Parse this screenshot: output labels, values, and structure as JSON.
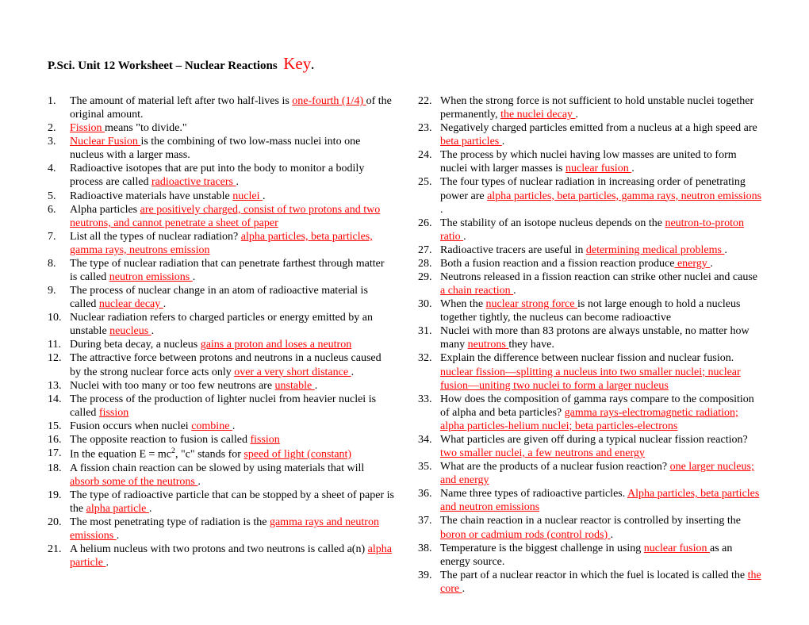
{
  "title": {
    "main": "P.Sci. Unit 12 Worksheet – Nuclear Reactions",
    "key": "Key",
    "period": "."
  },
  "colors": {
    "answer": "#ff0000",
    "text": "#000000",
    "background": "#ffffff"
  },
  "typography": {
    "body_fontsize_pt": 11,
    "title_fontsize_pt": 11,
    "key_fontsize_pt": 16,
    "font_family": "Times New Roman"
  },
  "questions": [
    {
      "parts": [
        {
          "t": "The amount of material left after two half-lives is "
        },
        {
          "a": "  one-fourth (1/4)  "
        },
        {
          "t": " of the original amount."
        }
      ]
    },
    {
      "parts": [
        {
          "a": "  Fission  "
        },
        {
          "t": " means \"to divide.\""
        }
      ]
    },
    {
      "parts": [
        {
          "a": "  Nuclear Fusion  "
        },
        {
          "t": " is the combining of two low-mass nuclei into one nucleus with a larger mass."
        }
      ]
    },
    {
      "parts": [
        {
          "t": "Radioactive isotopes that are put into the body to monitor a bodily process are called "
        },
        {
          "a": "  radioactive tracers  "
        },
        {
          "t": "."
        }
      ]
    },
    {
      "parts": [
        {
          "t": "Radioactive materials have unstable "
        },
        {
          "a": "  nuclei  "
        },
        {
          "t": "."
        }
      ]
    },
    {
      "parts": [
        {
          "t": "Alpha particles "
        },
        {
          "a": " are positively charged, consist of two protons and two neutrons, and cannot penetrate a sheet of paper"
        }
      ]
    },
    {
      "parts": [
        {
          "t": "List all the types of nuclear radiation? "
        },
        {
          "a": " alpha particles, beta particles, gamma rays,  neutrons emission"
        }
      ]
    },
    {
      "parts": [
        {
          "t": "The type of nuclear radiation that can penetrate farthest through matter is called "
        },
        {
          "a": "  neutron emissions  "
        },
        {
          "t": "."
        }
      ]
    },
    {
      "parts": [
        {
          "t": "The process of nuclear change in an atom of radioactive material is called "
        },
        {
          "a": "  nuclear decay  "
        },
        {
          "t": "."
        }
      ]
    },
    {
      "parts": [
        {
          "t": "Nuclear radiation refers to charged particles or energy emitted by an unstable "
        },
        {
          "a": "  neucleus   "
        },
        {
          "t": "."
        }
      ]
    },
    {
      "parts": [
        {
          "t": "During beta decay, a nucleus "
        },
        {
          "a": "   gains a proton and loses a neutron   "
        }
      ]
    },
    {
      "parts": [
        {
          "t": "The attractive force between protons and neutrons in a nucleus caused by the strong nuclear force acts only "
        },
        {
          "a": "   over a very short distance   "
        },
        {
          "t": "."
        }
      ]
    },
    {
      "parts": [
        {
          "t": "Nuclei with too many or too few neutrons are "
        },
        {
          "a": "   unstable   "
        },
        {
          "t": "."
        }
      ]
    },
    {
      "parts": [
        {
          "t": "The process of the production of lighter nuclei from heavier nuclei is called "
        },
        {
          "a": "   fission   "
        }
      ]
    },
    {
      "parts": [
        {
          "t": "Fusion occurs when nuclei "
        },
        {
          "a": "  combine  "
        },
        {
          "t": "."
        }
      ]
    },
    {
      "parts": [
        {
          "t": "The opposite reaction to fusion is called "
        },
        {
          "a": "  fission   "
        }
      ]
    },
    {
      "parts": [
        {
          "t": "In the equation E = mc"
        },
        {
          "sup": "2"
        },
        {
          "t": ", \"c\" stands for "
        },
        {
          "a": "   speed of light (constant)   "
        }
      ]
    },
    {
      "parts": [
        {
          "t": "A fission chain reaction can be slowed by using materials that will "
        },
        {
          "a": "absorb some of the neutrons   "
        },
        {
          "t": "."
        }
      ]
    },
    {
      "parts": [
        {
          "t": "The type of radioactive particle that can be stopped by a sheet of paper is the "
        },
        {
          "a": "  alpha  particle  "
        },
        {
          "t": "."
        }
      ]
    },
    {
      "parts": [
        {
          "t": "The most penetrating type of radiation is the "
        },
        {
          "a": "  gamma rays and neutron emissions  "
        },
        {
          "t": "."
        }
      ]
    },
    {
      "parts": [
        {
          "t": "A helium nucleus with two protons and two neutrons is called a(n) "
        },
        {
          "a": "  alpha particle   "
        },
        {
          "t": "."
        }
      ]
    },
    {
      "parts": [
        {
          "t": "When the strong force is not sufficient to hold unstable nuclei together permanently, "
        },
        {
          "a": "   the nuclei decay   "
        },
        {
          "t": "."
        }
      ]
    },
    {
      "parts": [
        {
          "t": "Negatively charged particles emitted from a nucleus at a high speed are "
        },
        {
          "a": "  beta  particles  "
        },
        {
          "t": "."
        }
      ]
    },
    {
      "parts": [
        {
          "t": "The process by which nuclei having low masses are united to form nuclei with larger masses is "
        },
        {
          "a": "  nuclear fusion  "
        },
        {
          "t": "."
        }
      ]
    },
    {
      "parts": [
        {
          "t": "The four types of nuclear radiation in increasing order of penetrating power are "
        },
        {
          "a": "  alpha particles, beta particles, gamma rays, neutron emissions  "
        },
        {
          "t": "."
        }
      ]
    },
    {
      "parts": [
        {
          "t": "The stability of an isotope nucleus depends on the "
        },
        {
          "a": "   neutron-to-proton ratio   "
        },
        {
          "t": "."
        }
      ]
    },
    {
      "parts": [
        {
          "t": "Radioactive tracers are useful in "
        },
        {
          "a": "   determining medical problems   "
        },
        {
          "t": "."
        }
      ]
    },
    {
      "parts": [
        {
          "t": "Both a fusion reaction and a fission reaction produce"
        },
        {
          "a": "  energy  "
        },
        {
          "t": "."
        }
      ]
    },
    {
      "parts": [
        {
          "t": "Neutrons released in a fission reaction can strike other nuclei and cause "
        },
        {
          "a": "  a chain reaction   "
        },
        {
          "t": "."
        }
      ]
    },
    {
      "parts": [
        {
          "t": "When the "
        },
        {
          "a": "  nuclear strong force  "
        },
        {
          "t": " is not large enough to hold a nucleus together tightly, the nucleus can become radioactive"
        }
      ]
    },
    {
      "parts": [
        {
          "t": " Nuclei with more than 83 protons are always unstable, no matter how many "
        },
        {
          "a": "  neutrons  "
        },
        {
          "t": " they have."
        }
      ]
    },
    {
      "parts": [
        {
          "t": "Explain the difference between nuclear fission and nuclear fusion. "
        },
        {
          "a": "nuclear fission—splitting a nucleus into two smaller nuclei; nuclear fusion—uniting two nuclei to form a larger nucleus"
        }
      ]
    },
    {
      "parts": [
        {
          "t": "How does the composition of gamma rays compare to the composition of alpha and beta particles?   "
        },
        {
          "a": " gamma rays-electromagnetic radiation; alpha particles-helium nuclei; beta particles-electrons"
        }
      ]
    },
    {
      "parts": [
        {
          "t": "What particles are given off during a typical nuclear fission reaction? "
        },
        {
          "a": "two smaller nuclei,  a few neutrons and energy"
        }
      ]
    },
    {
      "parts": [
        {
          "t": "What are the products of a nuclear fusion reaction?  "
        },
        {
          "a": "one larger nucleus; and energy"
        }
      ]
    },
    {
      "parts": [
        {
          "t": "Name three types of radioactive particles.  "
        },
        {
          "a": "Alpha particles, beta particles and neutron emissions"
        }
      ]
    },
    {
      "parts": [
        {
          "t": "The chain reaction in a nuclear reactor is controlled by inserting the "
        },
        {
          "a": "  boron or cadmium rods (control rods)   "
        },
        {
          "t": "."
        }
      ]
    },
    {
      "parts": [
        {
          "t": "Temperature is the biggest challenge in using "
        },
        {
          "a": "  nuclear fusion  "
        },
        {
          "t": " as an energy source."
        }
      ]
    },
    {
      "parts": [
        {
          "t": "The part of a nuclear reactor in which the fuel is located is called the "
        },
        {
          "a": "  the core   "
        },
        {
          "t": "."
        }
      ]
    }
  ]
}
